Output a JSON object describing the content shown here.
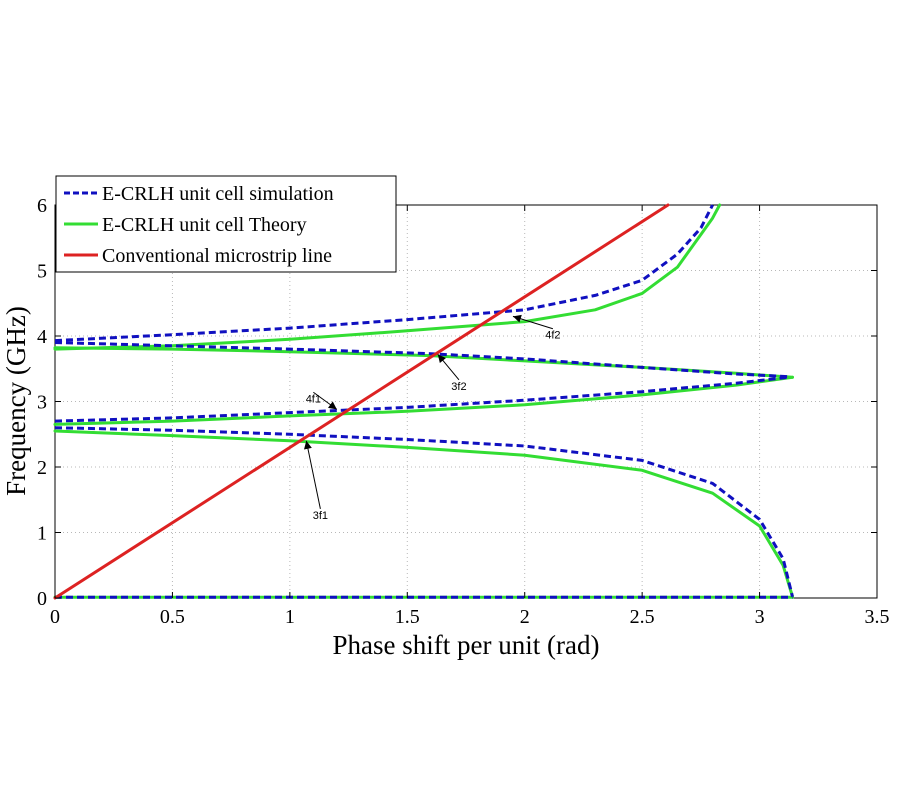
{
  "chart_data": {
    "type": "line",
    "title": "",
    "xlabel": "Phase shift per unit (rad)",
    "ylabel": "Frequency (GHz)",
    "xlim": [
      0,
      3.5
    ],
    "ylim": [
      0,
      6
    ],
    "xticks": [
      0,
      0.5,
      1,
      1.5,
      2,
      2.5,
      3,
      3.5
    ],
    "yticks": [
      0,
      1,
      2,
      3,
      4,
      5,
      6
    ],
    "xtick_labels": [
      "0",
      "0.5",
      "1",
      "1.5",
      "2",
      "2.5",
      "3",
      "3.5"
    ],
    "ytick_labels": [
      "0",
      "1",
      "2",
      "3",
      "4",
      "5",
      "6"
    ],
    "grid": true,
    "legend_position": "top-left",
    "series": [
      {
        "name": "E-CRLH unit cell simulation",
        "color": "#1010c0",
        "style": "dashed",
        "segments": [
          [
            [
              0,
              0.01
            ],
            [
              3.14,
              0.01
            ]
          ],
          [
            [
              0,
              2.6
            ],
            [
              0.5,
              2.56
            ],
            [
              1.0,
              2.5
            ],
            [
              1.5,
              2.42
            ],
            [
              2.0,
              2.32
            ],
            [
              2.5,
              2.1
            ],
            [
              2.8,
              1.75
            ],
            [
              3.0,
              1.2
            ],
            [
              3.1,
              0.6
            ],
            [
              3.14,
              0.02
            ]
          ],
          [
            [
              0,
              2.7
            ],
            [
              0.5,
              2.75
            ],
            [
              1.0,
              2.83
            ],
            [
              1.5,
              2.91
            ],
            [
              2.0,
              3.02
            ],
            [
              2.5,
              3.15
            ],
            [
              2.9,
              3.28
            ],
            [
              3.12,
              3.37
            ]
          ],
          [
            [
              0,
              3.9
            ],
            [
              0.5,
              3.85
            ],
            [
              1.0,
              3.8
            ],
            [
              1.6,
              3.73
            ],
            [
              2.0,
              3.65
            ],
            [
              2.5,
              3.52
            ],
            [
              2.9,
              3.42
            ],
            [
              3.12,
              3.38
            ]
          ],
          [
            [
              0,
              3.93
            ],
            [
              0.5,
              4.02
            ],
            [
              1.0,
              4.12
            ],
            [
              1.5,
              4.25
            ],
            [
              2.0,
              4.4
            ],
            [
              2.3,
              4.62
            ],
            [
              2.5,
              4.85
            ],
            [
              2.65,
              5.25
            ],
            [
              2.75,
              5.65
            ],
            [
              2.8,
              6.0
            ]
          ]
        ]
      },
      {
        "name": "E-CRLH unit cell Theory",
        "color": "#33dd33",
        "style": "solid",
        "segments": [
          [
            [
              0,
              0.01
            ],
            [
              3.14,
              0.01
            ]
          ],
          [
            [
              0,
              2.55
            ],
            [
              0.5,
              2.48
            ],
            [
              1.0,
              2.4
            ],
            [
              1.5,
              2.3
            ],
            [
              2.0,
              2.18
            ],
            [
              2.5,
              1.95
            ],
            [
              2.8,
              1.6
            ],
            [
              3.0,
              1.1
            ],
            [
              3.1,
              0.5
            ],
            [
              3.14,
              0.02
            ]
          ],
          [
            [
              0,
              2.65
            ],
            [
              0.5,
              2.7
            ],
            [
              1.0,
              2.78
            ],
            [
              1.5,
              2.85
            ],
            [
              2.0,
              2.95
            ],
            [
              2.5,
              3.1
            ],
            [
              2.9,
              3.25
            ],
            [
              3.14,
              3.37
            ]
          ],
          [
            [
              0,
              3.82
            ],
            [
              0.5,
              3.8
            ],
            [
              1.0,
              3.76
            ],
            [
              1.6,
              3.7
            ],
            [
              2.0,
              3.62
            ],
            [
              2.5,
              3.52
            ],
            [
              2.9,
              3.43
            ],
            [
              3.14,
              3.37
            ]
          ],
          [
            [
              0,
              3.8
            ],
            [
              0.5,
              3.85
            ],
            [
              1.0,
              3.95
            ],
            [
              1.5,
              4.08
            ],
            [
              2.0,
              4.22
            ],
            [
              2.3,
              4.4
            ],
            [
              2.5,
              4.65
            ],
            [
              2.65,
              5.05
            ],
            [
              2.75,
              5.55
            ],
            [
              2.8,
              5.8
            ],
            [
              2.83,
              6.0
            ]
          ]
        ]
      },
      {
        "name": "Conventional microstrip line",
        "color": "#dd2222",
        "style": "solid",
        "segments": [
          [
            [
              0,
              0
            ],
            [
              2.61,
              6.0
            ]
          ]
        ]
      }
    ],
    "annotations": [
      {
        "text": "4f2",
        "x": 1.95,
        "y": 4.3,
        "label_x": 2.12,
        "label_y": 4.05
      },
      {
        "text": "3f2",
        "x": 1.63,
        "y": 3.72,
        "label_x": 1.72,
        "label_y": 3.27
      },
      {
        "text": "4f1",
        "x": 1.2,
        "y": 2.88,
        "label_x": 1.1,
        "label_y": 3.08
      },
      {
        "text": "3f1",
        "x": 1.07,
        "y": 2.4,
        "label_x": 1.13,
        "label_y": 1.3
      }
    ]
  }
}
